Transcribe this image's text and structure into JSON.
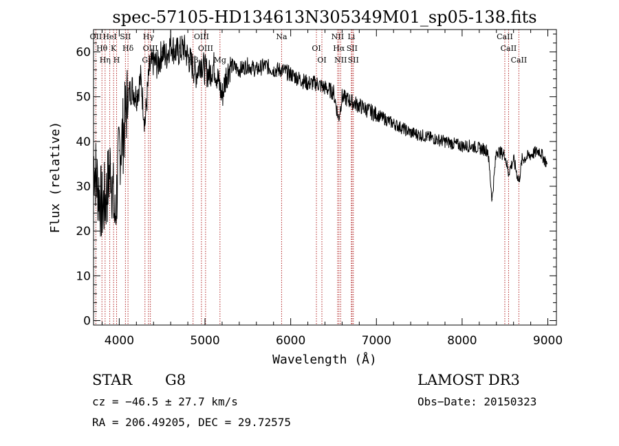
{
  "chart_data": {
    "type": "line",
    "title": "spec-57105-HD134613N305349M01_sp05-138.fits",
    "xlabel": "Wavelength (Å)",
    "ylabel": "Flux (relative)",
    "xlim": [
      3700,
      9100
    ],
    "ylim": [
      -1,
      65
    ],
    "x_ticks": [
      4000,
      5000,
      6000,
      7000,
      8000,
      9000
    ],
    "y_ticks": [
      0,
      10,
      20,
      30,
      40,
      50,
      60
    ],
    "grid": false,
    "series": [
      {
        "x": [
          3700,
          3750,
          3800,
          3850,
          3900,
          3950,
          4000,
          4050,
          4100,
          4150,
          4200,
          4250,
          4300,
          4350,
          4400,
          4450,
          4500,
          4550,
          4600,
          4650,
          4700,
          4750,
          4800,
          4850,
          4900,
          4950,
          5000,
          5050,
          5100,
          5150,
          5200,
          5250,
          5300,
          5400,
          5500,
          5600,
          5700,
          5800,
          5900,
          6000,
          6100,
          6200,
          6300,
          6400,
          6500,
          6560,
          6600,
          6700,
          6800,
          6900,
          7000,
          7100,
          7200,
          7300,
          7400,
          7500,
          7600,
          7700,
          7800,
          7900,
          8000,
          8100,
          8200,
          8300,
          8350,
          8400,
          8500,
          8540,
          8600,
          8662,
          8700,
          8800,
          8900,
          8990
        ],
        "y": [
          36,
          30,
          25,
          28,
          35,
          22,
          38,
          42,
          50,
          52,
          50,
          54,
          44,
          56,
          58,
          57,
          60,
          59,
          62,
          60,
          60,
          61,
          59,
          57,
          55,
          58,
          56,
          55,
          57,
          54,
          50,
          55,
          57,
          56,
          57,
          56,
          57,
          56,
          56,
          55,
          54,
          53,
          53,
          52,
          51,
          45,
          50,
          49,
          48,
          47,
          46,
          45,
          44,
          43,
          42,
          41.5,
          41,
          40.5,
          40,
          39.5,
          39,
          39,
          38.5,
          38,
          27,
          38,
          37,
          33,
          36,
          31,
          36,
          37,
          38,
          35
        ]
      }
    ],
    "lines": [
      {
        "wavelength": 3727,
        "label": "OII"
      },
      {
        "wavelength": 3798,
        "label": "Hθ"
      },
      {
        "wavelength": 3835,
        "label": "Hη"
      },
      {
        "wavelength": 3889,
        "label": "HeI"
      },
      {
        "wavelength": 3934,
        "label": "K"
      },
      {
        "wavelength": 3969,
        "label": "H"
      },
      {
        "wavelength": 4072,
        "label": "SII"
      },
      {
        "wavelength": 4102,
        "label": "Hδ"
      },
      {
        "wavelength": 4300,
        "label": "G"
      },
      {
        "wavelength": 4341,
        "label": "Hγ"
      },
      {
        "wavelength": 4363,
        "label": "OIII"
      },
      {
        "wavelength": 4861,
        "label": "Hβ"
      },
      {
        "wavelength": 4959,
        "label": "OIII"
      },
      {
        "wavelength": 5007,
        "label": "OIII"
      },
      {
        "wavelength": 5175,
        "label": "Mg"
      },
      {
        "wavelength": 5894,
        "label": "Na"
      },
      {
        "wavelength": 6300,
        "label": "OI"
      },
      {
        "wavelength": 6364,
        "label": "OI"
      },
      {
        "wavelength": 6548,
        "label": "NII"
      },
      {
        "wavelength": 6563,
        "label": "Hα"
      },
      {
        "wavelength": 6583,
        "label": "NII"
      },
      {
        "wavelength": 6708,
        "label": "Li"
      },
      {
        "wavelength": 6716,
        "label": "SII"
      },
      {
        "wavelength": 6731,
        "label": "SII"
      },
      {
        "wavelength": 8498,
        "label": "CaII"
      },
      {
        "wavelength": 8542,
        "label": "CaII"
      },
      {
        "wavelength": 8662,
        "label": "CaII"
      }
    ]
  },
  "info": {
    "class_label": "STAR",
    "subclass_label": "G8",
    "survey_label": "LAMOST DR3",
    "cz_text": "cz = −46.5 ± 27.7 km/s",
    "obs_date_text": "Obs−Date: 20150323",
    "coords_text": "RA = 206.49205, DEC =  29.72575"
  },
  "colors": {
    "spectrum": "#000000",
    "line_markers": "#b22222",
    "axes": "#000000"
  }
}
